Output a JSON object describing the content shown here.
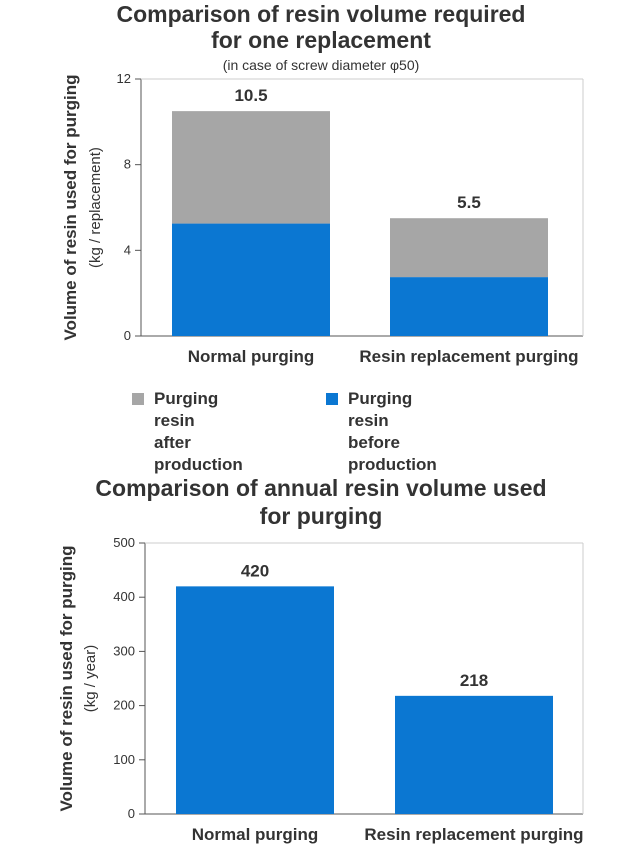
{
  "charts": [
    {
      "title_line1": "Comparison of resin volume required",
      "title_line2": "for one replacement",
      "subtitle": "(in case of screw diameter φ50)",
      "legend": [
        {
          "line1": "Purging resin",
          "line2": "after production",
          "color": "#a6a6a6"
        },
        {
          "line1": "Purging resin",
          "line2": "before production",
          "color": "#0b77d2"
        }
      ]
    },
    {
      "title_line1": "Comparison of annual resin volume used",
      "title_line2": "for purging"
    }
  ],
  "chart_data": [
    {
      "type": "bar",
      "stacked": true,
      "categories": [
        "Normal purging",
        "Resin replacement purging"
      ],
      "series": [
        {
          "name": "Purging resin before production",
          "values": [
            5.25,
            2.75
          ],
          "color": "#0b77d2"
        },
        {
          "name": "Purging resin after production",
          "values": [
            5.25,
            2.75
          ],
          "color": "#a6a6a6"
        }
      ],
      "totals": [
        10.5,
        5.5
      ],
      "total_labels": [
        "10.5",
        "5.5"
      ],
      "ylabel": "Volume of resin used for purging",
      "ylabel_unit": "(kg / replacement)",
      "ylim": [
        0,
        12
      ],
      "yticks": [
        0,
        4,
        8,
        12
      ],
      "grid": false,
      "legend_position": "bottom"
    },
    {
      "type": "bar",
      "categories": [
        "Normal purging",
        "Resin replacement purging"
      ],
      "series": [
        {
          "values": [
            420,
            218
          ],
          "color": "#0b77d2"
        }
      ],
      "value_labels": [
        "420",
        "218"
      ],
      "ylabel": "Volume of resin used for purging",
      "ylabel_unit": "(kg / year)",
      "ylim": [
        0,
        500
      ],
      "yticks": [
        0,
        100,
        200,
        300,
        400,
        500
      ],
      "grid": false
    }
  ]
}
